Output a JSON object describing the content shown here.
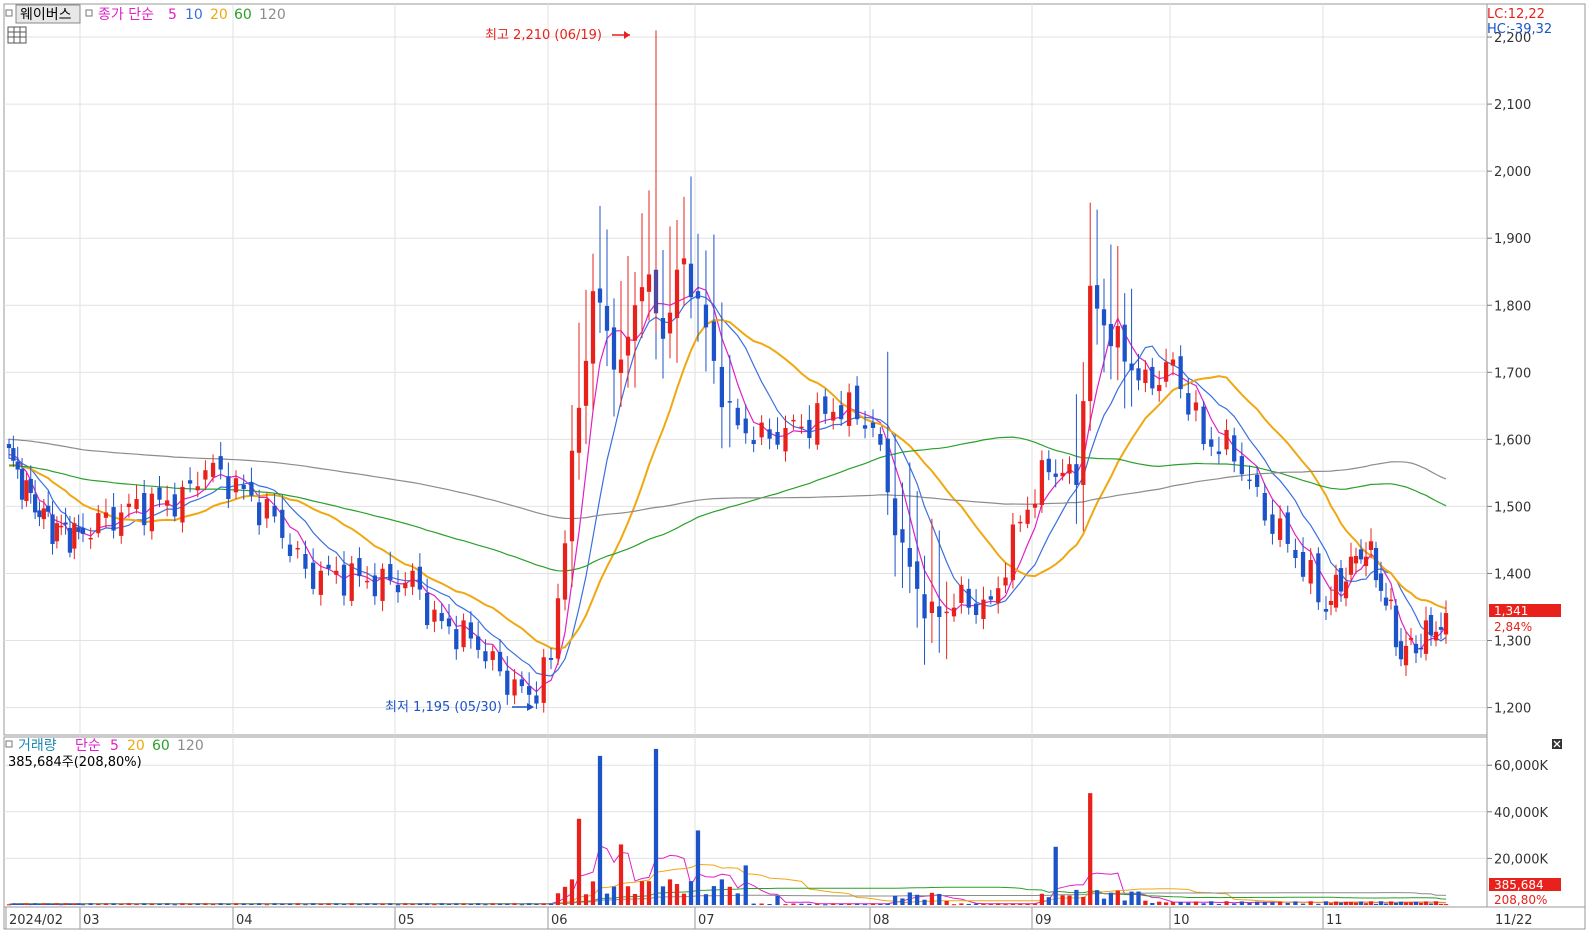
{
  "header": {
    "stock_name": "웨이버스",
    "price_ma_title": "종가 단순",
    "ma_periods": [
      "5",
      "10",
      "20",
      "60",
      "120"
    ],
    "corr_lc": "LC:12,22",
    "corr_hc": "HC:-39,32"
  },
  "volume_header": {
    "title": "거래량",
    "ma_title": "단순",
    "ma_periods": [
      "5",
      "20",
      "60",
      "120"
    ],
    "current_volume": "385,684주(208,80%)"
  },
  "annotations": {
    "high": "최고 2,210 (06/19)",
    "low": "최저 1,195 (05/30)"
  },
  "price_tag": {
    "value": "1,341",
    "change": "2,84%"
  },
  "volume_tag": {
    "value": "385,684",
    "ratio": "208,80%"
  },
  "date_range_end": "11/22",
  "colors": {
    "up": "#e8211c",
    "down": "#1c53c8",
    "ma5": "#e020c8",
    "ma10": "#3a6fe0",
    "ma20": "#f0a812",
    "ma60": "#2aa02a",
    "ma120": "#8c8c8c"
  },
  "chart_data": [
    {
      "type": "candlestick",
      "title": "웨이버스",
      "ylim": [
        1170,
        2240
      ],
      "y_ticks": [
        "1,200",
        "1,300",
        "1,400",
        "1,500",
        "1,600",
        "1,700",
        "1,800",
        "1,900",
        "2,000",
        "2,100",
        "2,200"
      ],
      "x_tick_labels": [
        "2024/02",
        "03",
        "04",
        "05",
        "06",
        "07",
        "08",
        "09",
        "10",
        "11"
      ],
      "grid": true,
      "ma_periods": [
        5,
        10,
        20,
        60,
        120
      ],
      "ohlc_approx": [
        [
          "02",
          1582,
          1588,
          1560,
          1575
        ],
        [
          "03",
          1505,
          1530,
          1450,
          1470
        ],
        [
          "04",
          1520,
          1580,
          1495,
          1560
        ],
        [
          "05",
          1385,
          1420,
          1360,
          1398
        ],
        [
          "05/30",
          1220,
          1250,
          1195,
          1240
        ],
        [
          "06",
          1345,
          1870,
          1210,
          1820
        ],
        [
          "06/19",
          1760,
          2210,
          1740,
          1900
        ],
        [
          "07",
          1700,
          1760,
          1520,
          1640
        ],
        [
          "08",
          1615,
          1630,
          1230,
          1300
        ],
        [
          "09",
          1820,
          1890,
          1550,
          1700
        ],
        [
          "10",
          1690,
          1710,
          1530,
          1550
        ],
        [
          "11",
          1310,
          1480,
          1230,
          1341
        ]
      ],
      "last": {
        "close": 1341,
        "change_pct": 2.84
      }
    },
    {
      "type": "bar",
      "title": "거래량",
      "ylim": [
        0,
        75000
      ],
      "y_ticks": [
        "20,000K",
        "40,000K",
        "60,000K"
      ],
      "ma_periods": [
        5,
        20,
        60,
        120
      ],
      "peaks_approx": [
        {
          "x": "06",
          "value": 37000
        },
        {
          "x": "06",
          "value": 64000
        },
        {
          "x": "06/19",
          "value": 67000
        },
        {
          "x": "06/24",
          "value": 32000
        },
        {
          "x": "08/27",
          "value": 25000
        },
        {
          "x": "09/02",
          "value": 48000
        }
      ],
      "last": {
        "volume": 385684,
        "ratio_pct": 208.8
      }
    }
  ]
}
